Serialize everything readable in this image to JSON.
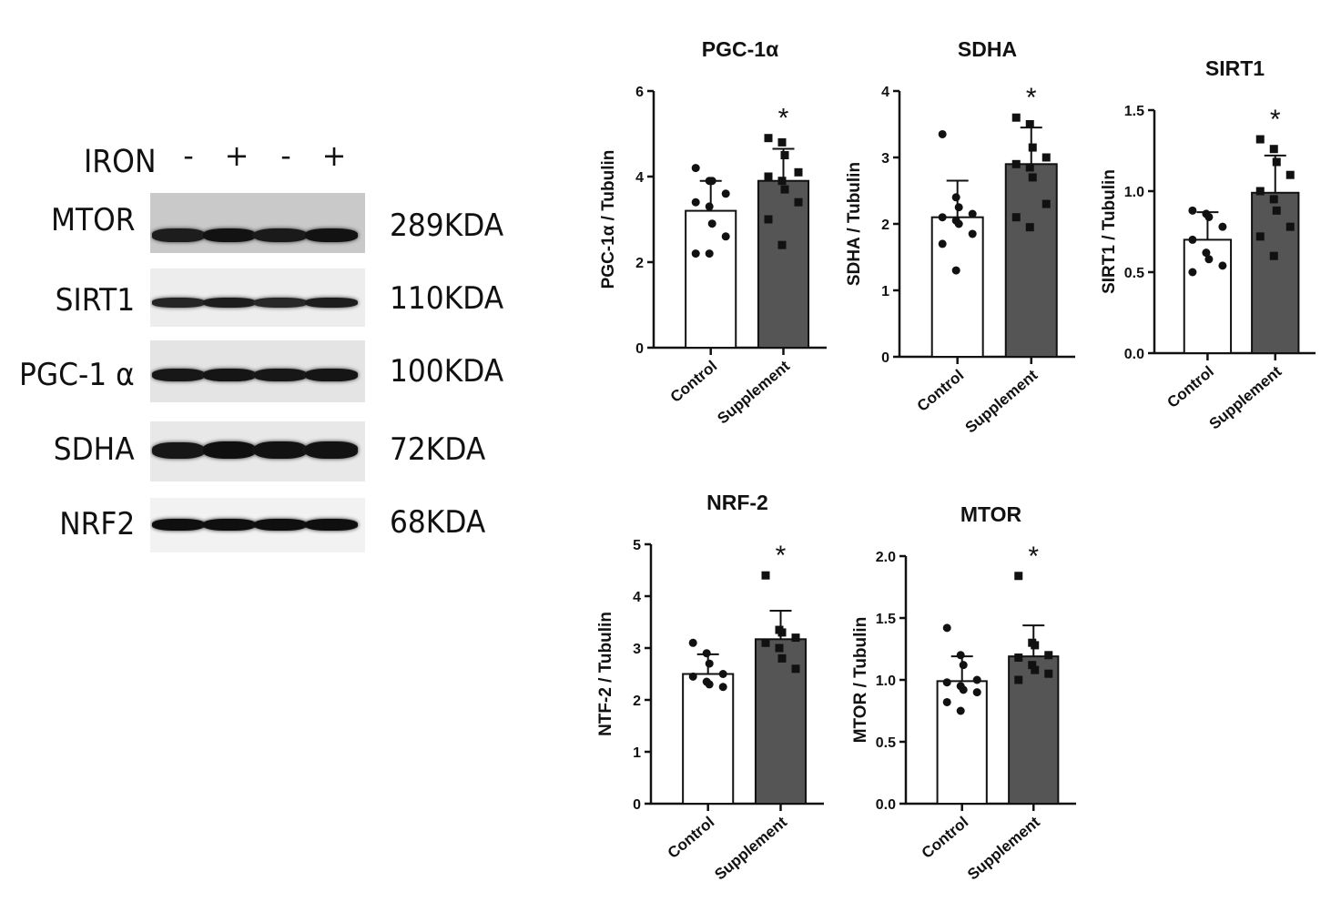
{
  "blot": {
    "condition_label": "IRON",
    "lane_signs": [
      "-",
      "+",
      "-",
      "+"
    ],
    "rows": [
      {
        "protein": "MTOR",
        "size": "289KDA",
        "intensity": [
          0.75,
          0.95,
          0.8,
          0.95
        ]
      },
      {
        "protein": "SIRT1",
        "size": "110KDA",
        "intensity": [
          0.6,
          0.75,
          0.55,
          0.75
        ]
      },
      {
        "protein": "PGC-1 α",
        "size": "100KDA",
        "intensity": [
          0.85,
          0.9,
          0.85,
          0.9
        ]
      },
      {
        "protein": "SDHA",
        "size": "72KDA",
        "intensity": [
          0.85,
          1.0,
          0.95,
          0.95
        ]
      },
      {
        "protein": "NRF2",
        "size": "68KDA",
        "intensity": [
          1.0,
          1.0,
          1.0,
          1.0
        ]
      }
    ]
  },
  "chart_data": [
    {
      "type": "bar",
      "title": "PGC-1α",
      "ylabel": "PGC-1α / Tubulin",
      "xlabel": "",
      "categories": [
        "Control",
        "Supplement"
      ],
      "values": [
        3.2,
        3.9
      ],
      "error": [
        0.7,
        0.75
      ],
      "ylim": [
        0,
        6
      ],
      "yticks": [
        "0",
        "2",
        "4",
        "6"
      ],
      "points": [
        [
          4.2,
          3.9,
          3.9,
          3.6,
          3.4,
          3.3,
          2.9,
          2.6,
          2.2,
          2.2
        ],
        [
          4.9,
          4.8,
          4.5,
          4.1,
          4.0,
          3.9,
          3.7,
          3.4,
          3.0,
          2.4
        ]
      ],
      "significance": "*",
      "bar_colors": [
        "#ffffff",
        "#555555"
      ]
    },
    {
      "type": "bar",
      "title": "SDHA",
      "ylabel": "SDHA / Tubulin",
      "xlabel": "",
      "categories": [
        "Control",
        "Supplement"
      ],
      "values": [
        2.1,
        2.9
      ],
      "error": [
        0.55,
        0.55
      ],
      "ylim": [
        0,
        4
      ],
      "yticks": [
        "0",
        "1",
        "2",
        "3",
        "4"
      ],
      "points": [
        [
          3.35,
          2.4,
          2.25,
          2.15,
          2.1,
          2.05,
          2.0,
          1.85,
          1.7,
          1.3
        ],
        [
          3.6,
          3.5,
          3.15,
          3.0,
          2.9,
          2.85,
          2.7,
          2.3,
          2.1,
          1.95
        ]
      ],
      "significance": "*",
      "bar_colors": [
        "#ffffff",
        "#555555"
      ]
    },
    {
      "type": "bar",
      "title": "SIRT1",
      "ylabel": "SIRT1 / Tubulin",
      "xlabel": "",
      "categories": [
        "Control",
        "Supplement"
      ],
      "values": [
        0.7,
        0.99
      ],
      "error": [
        0.17,
        0.23
      ],
      "ylim": [
        0,
        1.5
      ],
      "yticks": [
        "0.0",
        "0.5",
        "1.0",
        "1.5"
      ],
      "points": [
        [
          0.88,
          0.86,
          0.84,
          0.78,
          0.7,
          0.62,
          0.58,
          0.54,
          0.5
        ],
        [
          1.32,
          1.26,
          1.18,
          1.1,
          1.0,
          0.95,
          0.88,
          0.78,
          0.72,
          0.6
        ]
      ],
      "significance": "*",
      "bar_colors": [
        "#ffffff",
        "#555555"
      ]
    },
    {
      "type": "bar",
      "title": "NRF-2",
      "ylabel": "NTF-2 / Tubulin",
      "xlabel": "",
      "categories": [
        "Control",
        "Supplement"
      ],
      "values": [
        2.5,
        3.17
      ],
      "error": [
        0.38,
        0.55
      ],
      "ylim": [
        0,
        5
      ],
      "yticks": [
        "0",
        "1",
        "2",
        "3",
        "4",
        "5"
      ],
      "points": [
        [
          3.1,
          2.9,
          2.7,
          2.5,
          2.45,
          2.35,
          2.3,
          2.25
        ],
        [
          4.4,
          3.35,
          3.3,
          3.2,
          3.1,
          3.0,
          2.8,
          2.6
        ]
      ],
      "significance": "*",
      "bar_colors": [
        "#ffffff",
        "#555555"
      ]
    },
    {
      "type": "bar",
      "title": "MTOR",
      "ylabel": "MTOR / Tubulin",
      "xlabel": "",
      "categories": [
        "Control",
        "Supplement"
      ],
      "values": [
        0.99,
        1.19
      ],
      "error": [
        0.2,
        0.25
      ],
      "ylim": [
        0,
        2.0
      ],
      "yticks": [
        "0.0",
        "0.5",
        "1.0",
        "1.5",
        "2.0"
      ],
      "points": [
        [
          1.42,
          1.2,
          1.12,
          1.0,
          0.98,
          0.95,
          0.92,
          0.9,
          0.82,
          0.75
        ],
        [
          1.84,
          1.3,
          1.28,
          1.2,
          1.18,
          1.12,
          1.08,
          1.05,
          1.0
        ]
      ],
      "significance": "*",
      "bar_colors": [
        "#ffffff",
        "#555555"
      ]
    }
  ]
}
